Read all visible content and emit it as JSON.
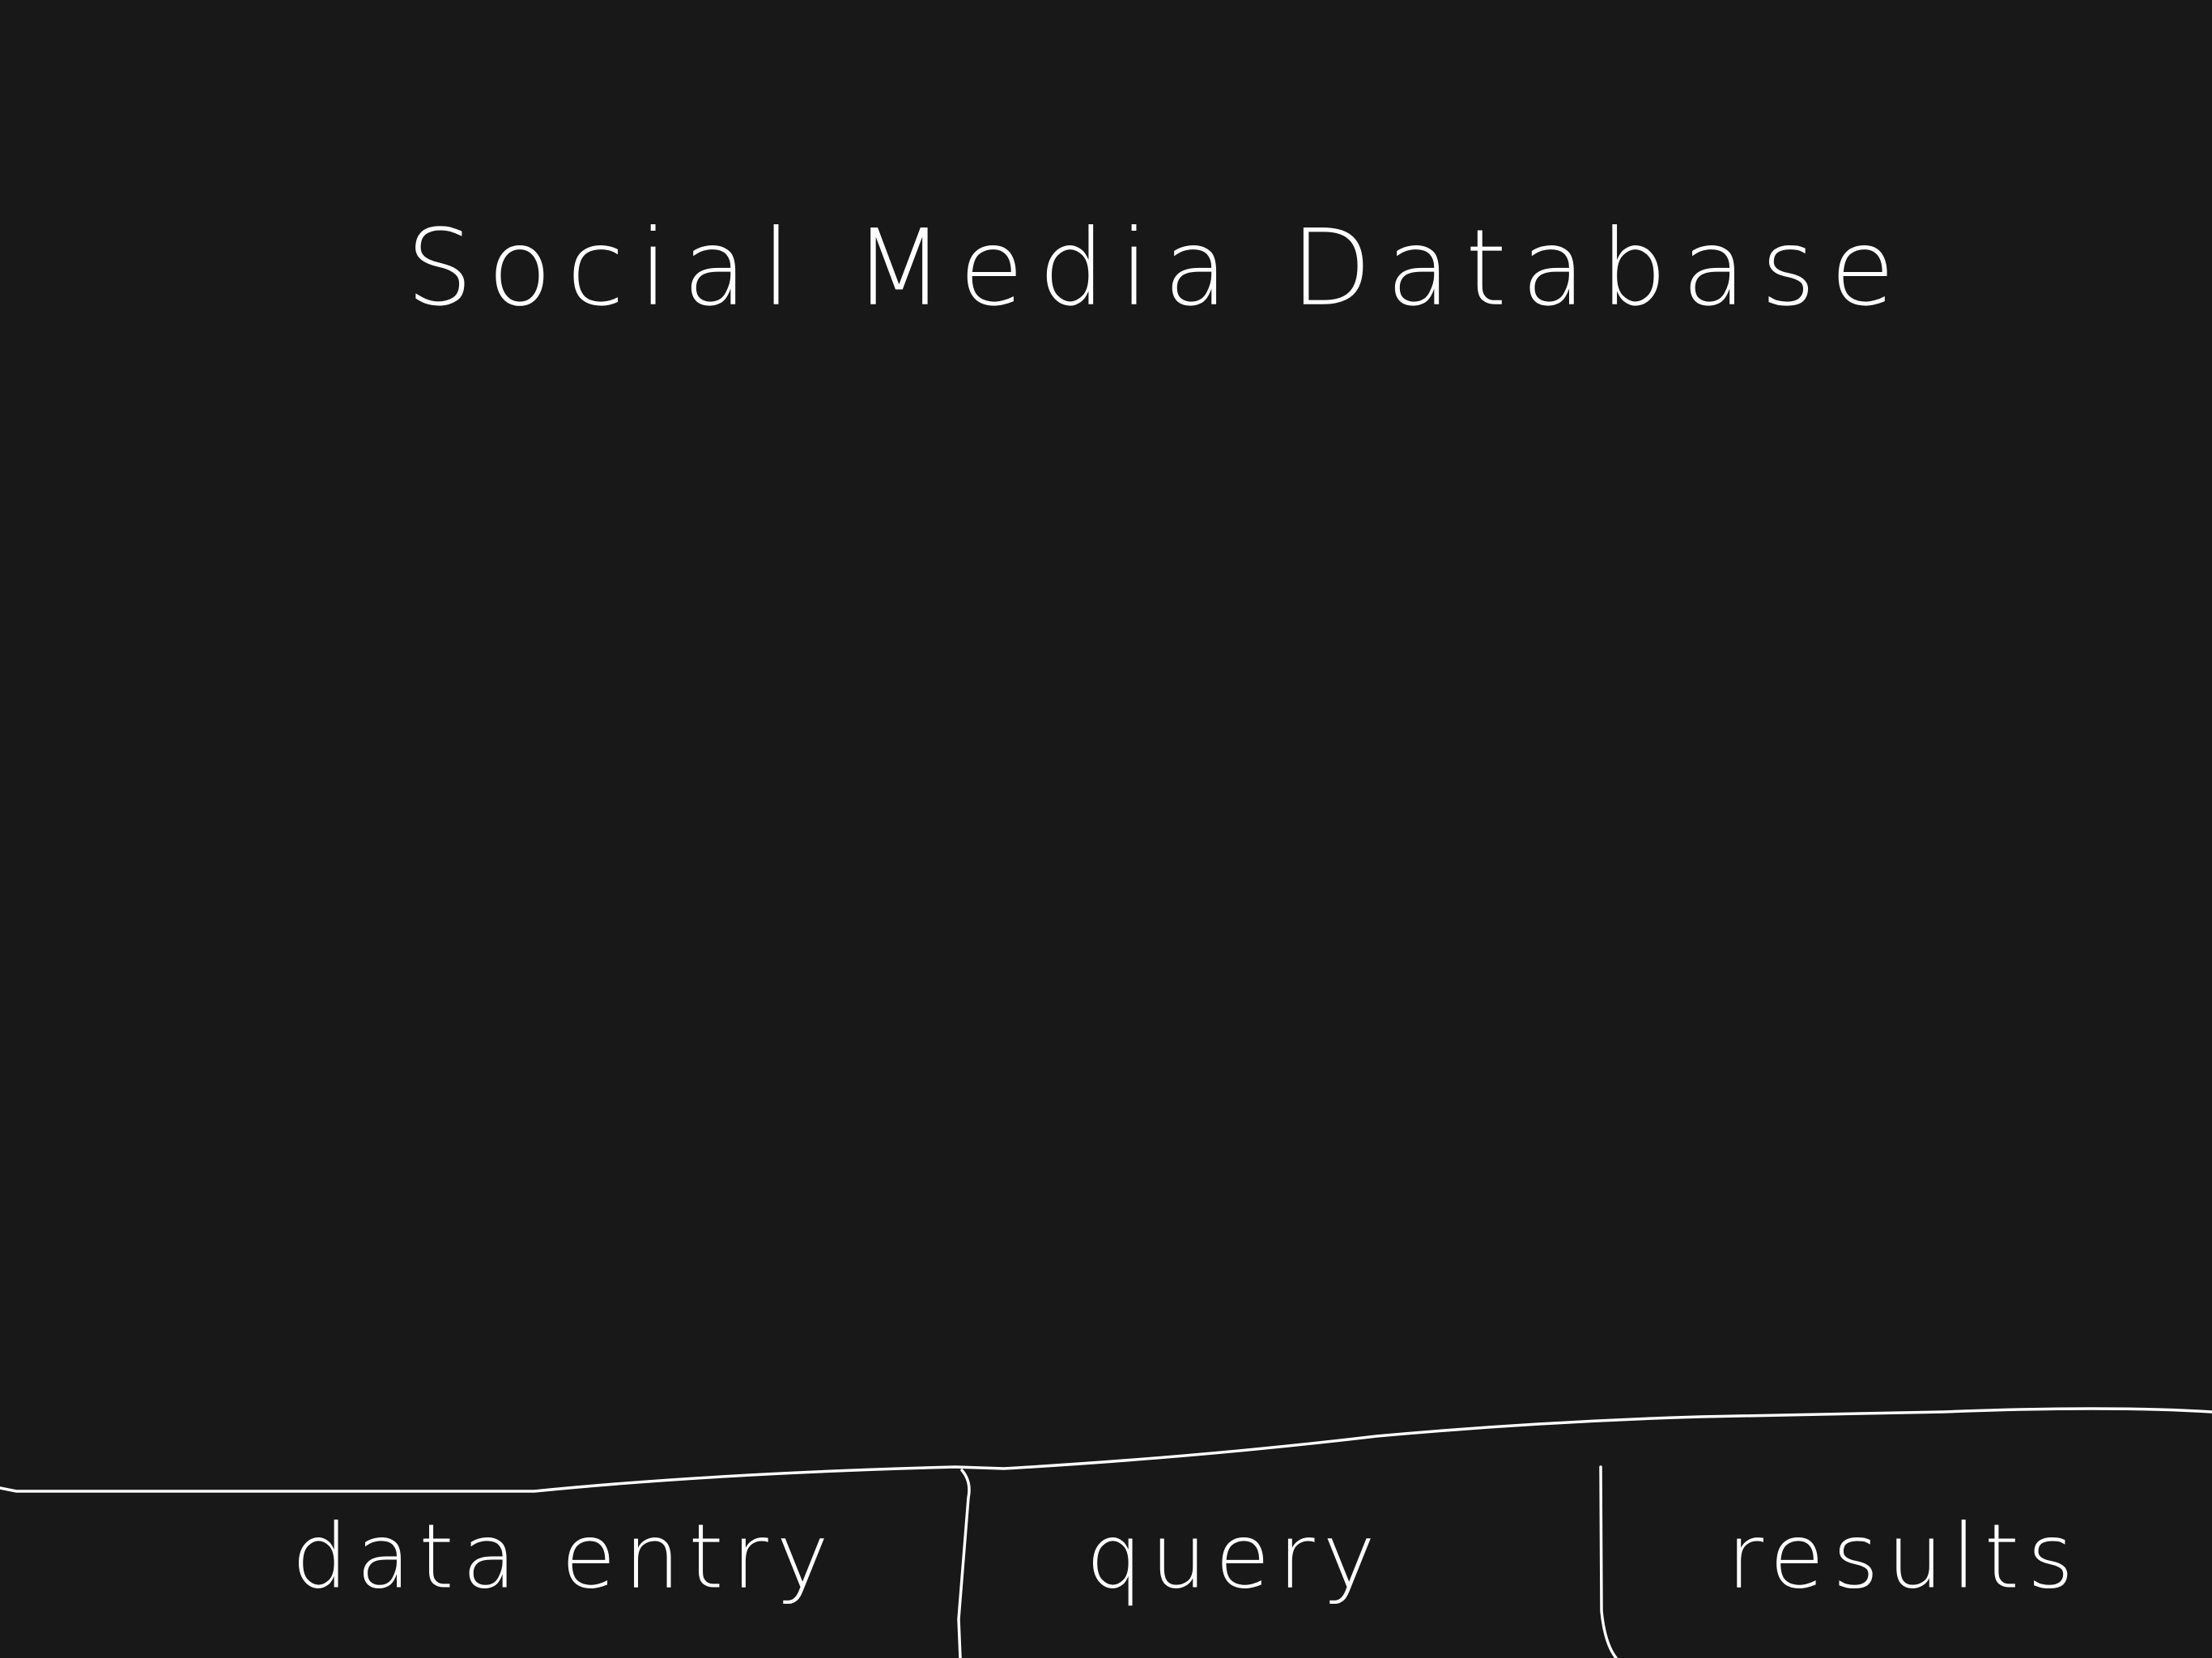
{
  "header": {
    "title": "Social Media Database"
  },
  "tabs": [
    {
      "label": "data entry"
    },
    {
      "label": "query"
    },
    {
      "label": "results"
    }
  ]
}
